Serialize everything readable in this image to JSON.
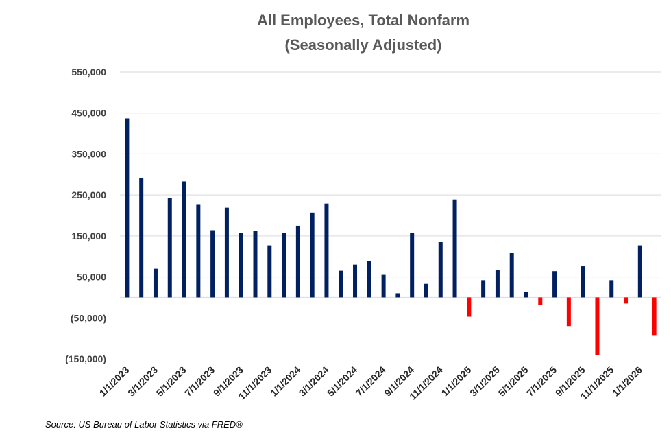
{
  "chart_data": {
    "type": "bar",
    "title": [
      "All Employees, Total Nonfarm",
      "(Seasonally Adjusted)"
    ],
    "xlabel": "",
    "ylabel": "",
    "ylim": [
      -150000,
      550000
    ],
    "yticks": [
      550000,
      450000,
      350000,
      250000,
      150000,
      50000,
      -50000,
      -150000
    ],
    "ytick_labels": [
      "550,000",
      "450,000",
      "350,000",
      "250,000",
      "150,000",
      "50,000",
      "(50,000)",
      "(150,000)"
    ],
    "x_tick_labels": [
      "1/1/2023",
      "3/1/2023",
      "5/1/2023",
      "7/1/2023",
      "9/1/2023",
      "11/1/2023",
      "1/1/2024",
      "3/1/2024",
      "5/1/2024",
      "7/1/2024",
      "9/1/2024",
      "11/1/2024",
      "1/1/2025",
      "3/1/2025",
      "5/1/2025",
      "7/1/2025",
      "9/1/2025",
      "11/1/2025",
      "1/1/2026"
    ],
    "categories": [
      "2023-01",
      "2023-02",
      "2023-03",
      "2023-04",
      "2023-05",
      "2023-06",
      "2023-07",
      "2023-08",
      "2023-09",
      "2023-10",
      "2023-11",
      "2023-12",
      "2024-01",
      "2024-02",
      "2024-03",
      "2024-04",
      "2024-05",
      "2024-06",
      "2024-07",
      "2024-08",
      "2024-09",
      "2024-10",
      "2024-11",
      "2024-12",
      "2025-01",
      "2025-02",
      "2025-03",
      "2025-04",
      "2025-05",
      "2025-06",
      "2025-07",
      "2025-08",
      "2025-09",
      "2025-10",
      "2025-11",
      "2025-12",
      "2026-01",
      "2026-02"
    ],
    "values": [
      437000,
      291000,
      70000,
      242000,
      283000,
      226000,
      164000,
      219000,
      157000,
      162000,
      127000,
      157000,
      175000,
      207000,
      229000,
      65000,
      80000,
      89000,
      55000,
      10000,
      157000,
      33000,
      136000,
      239000,
      -47000,
      42000,
      66000,
      108000,
      14000,
      -19000,
      64000,
      -70000,
      76000,
      -140000,
      42000,
      -15000,
      127000,
      -92000
    ],
    "colors": {
      "positive": "#002060",
      "negative": "#ff0000",
      "grid": "#d9d9d9"
    }
  },
  "source": "Source: US Bureau of Labor Statistics via FRED®"
}
